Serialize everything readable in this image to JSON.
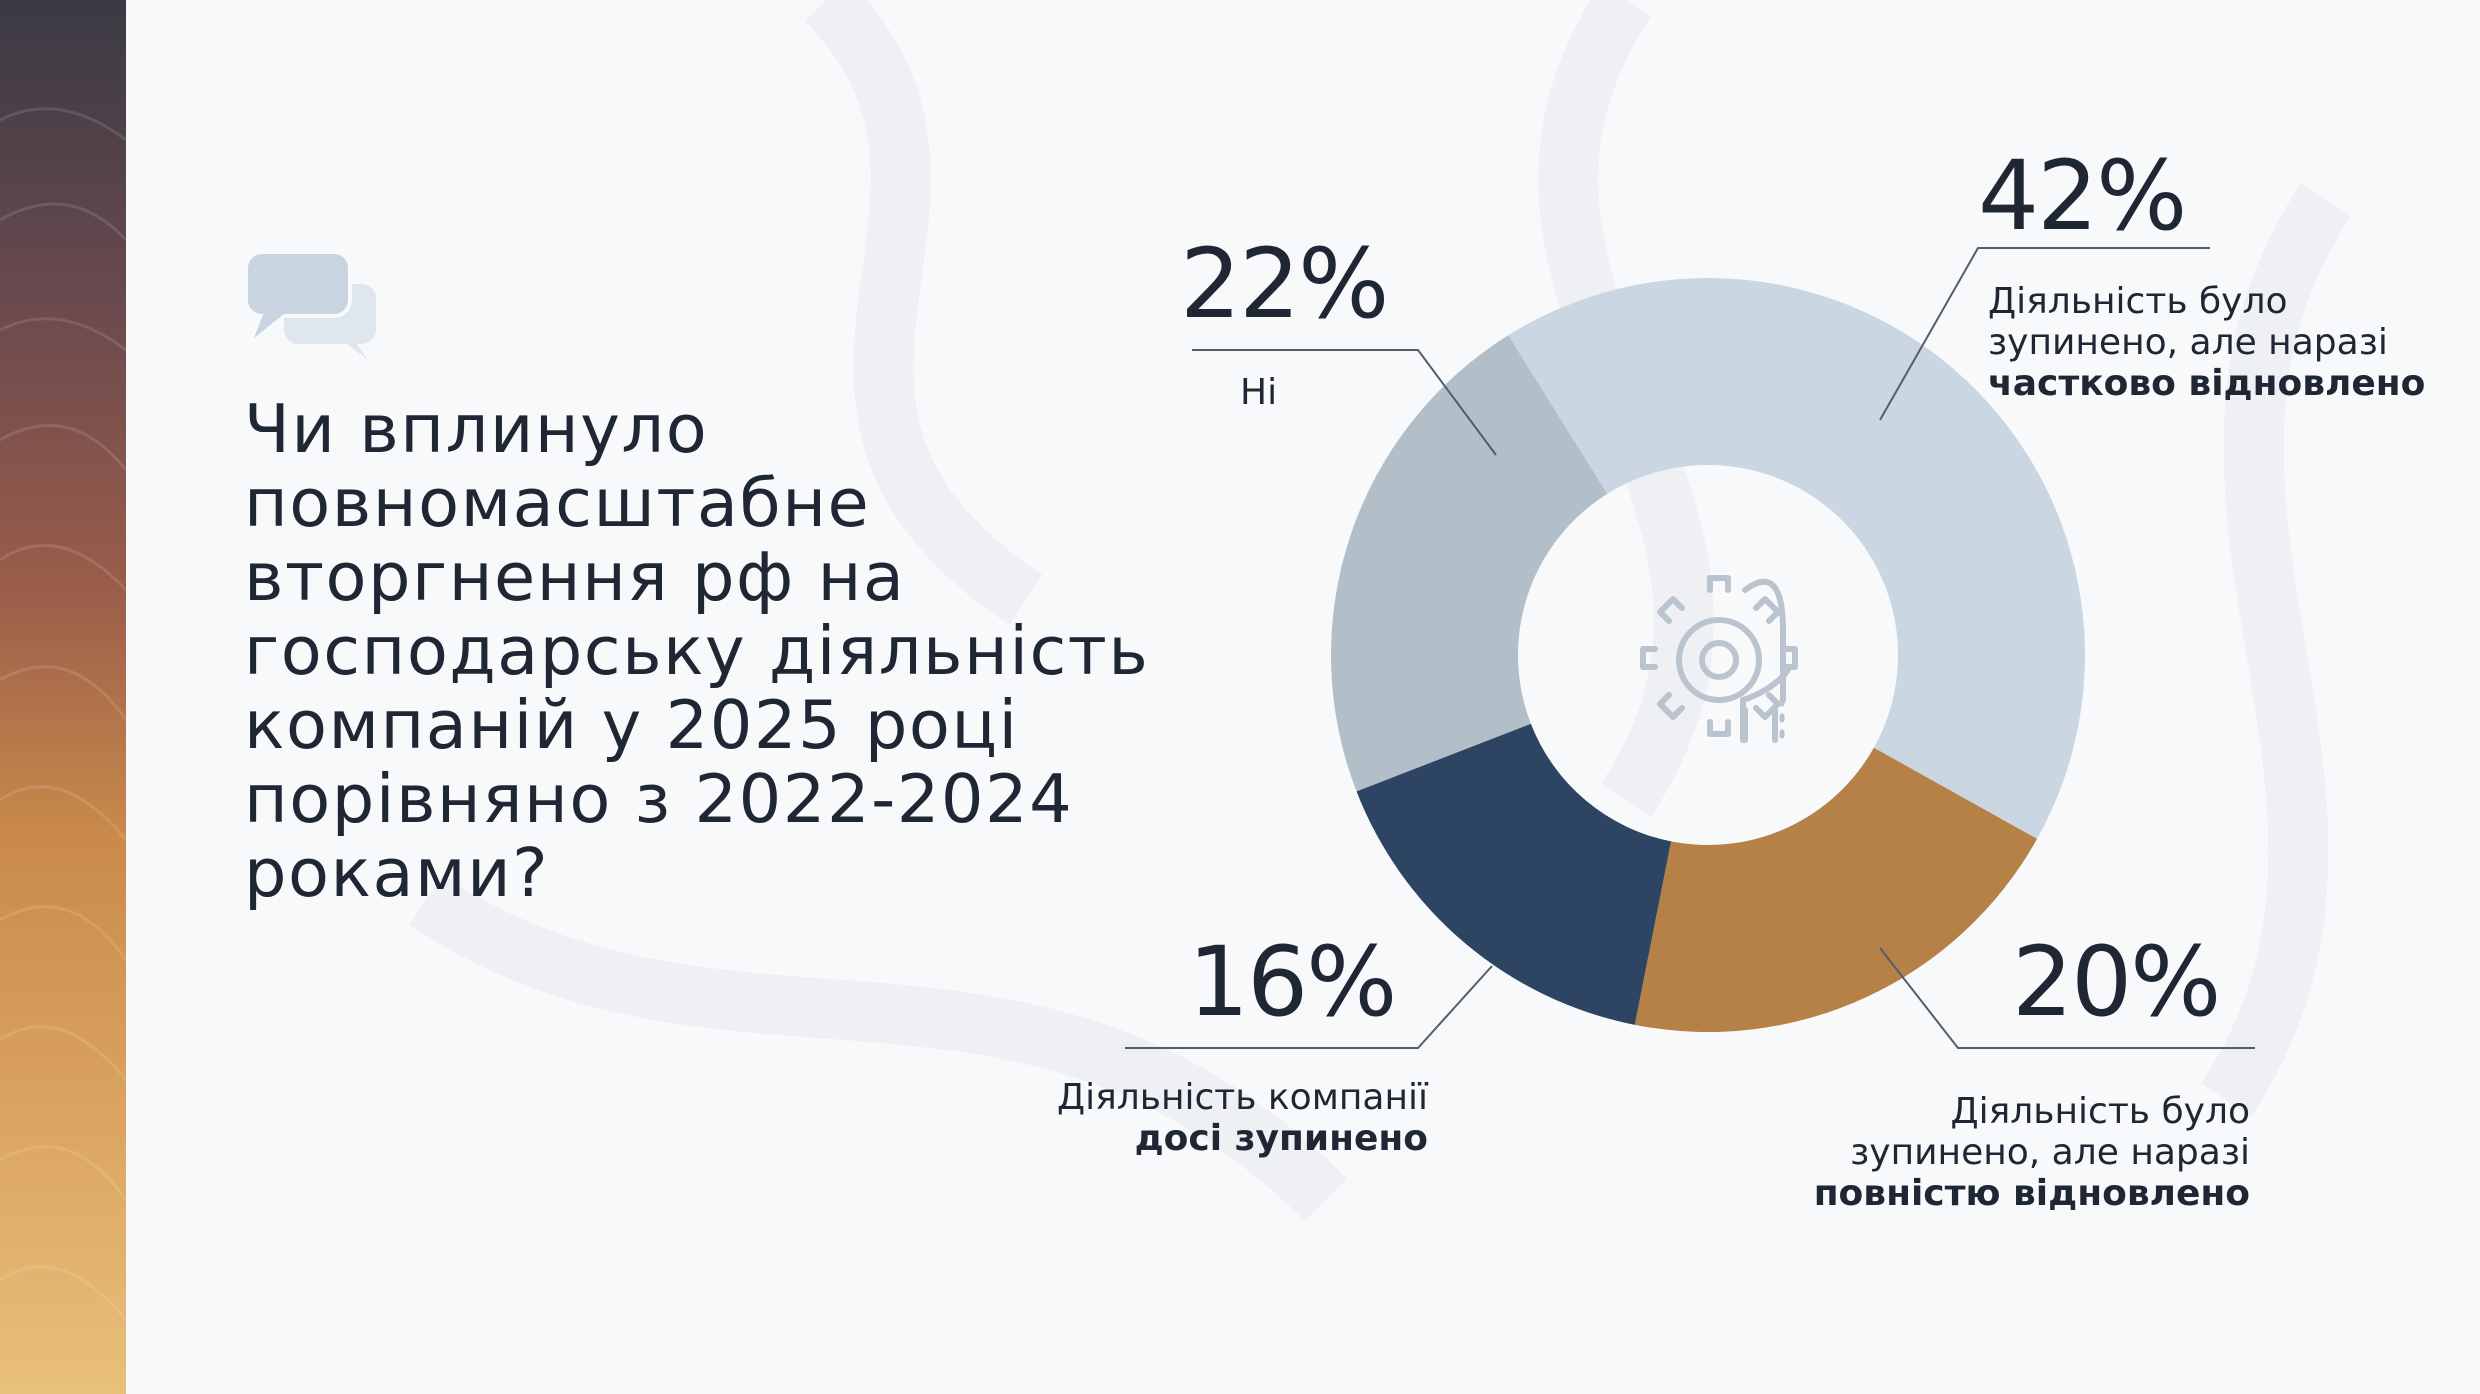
{
  "question": "Чи вплинуло повномасштабне вторгнення рф на господарську діяльність компаній у 2025 році порівняно з 2022-2024 роками?",
  "icons": {
    "header": "chat-bubbles-icon",
    "center": "gear-head-icon"
  },
  "colors": {
    "no": "#b2bfc8",
    "partially_restored": "#cad7e2",
    "fully_restored": "#b58147",
    "still_stopped": "#2d4562",
    "text": "#1e2733"
  },
  "chart_data": {
    "type": "pie",
    "donut": true,
    "slices": [
      {
        "key": "partially_restored",
        "value": 42,
        "pct_label": "42%",
        "label_plain": "Діяльність було зупинено, але наразі",
        "label_bold": "частково відновлено"
      },
      {
        "key": "fully_restored",
        "value": 20,
        "pct_label": "20%",
        "label_plain": "Діяльність було зупинено, але наразі",
        "label_bold": "повністю відновлено"
      },
      {
        "key": "still_stopped",
        "value": 16,
        "pct_label": "16%",
        "label_plain": "Діяльність компанії",
        "label_bold": "досі зупинено"
      },
      {
        "key": "no",
        "value": 22,
        "pct_label": "22%",
        "label_plain": "Ні",
        "label_bold": ""
      }
    ]
  }
}
